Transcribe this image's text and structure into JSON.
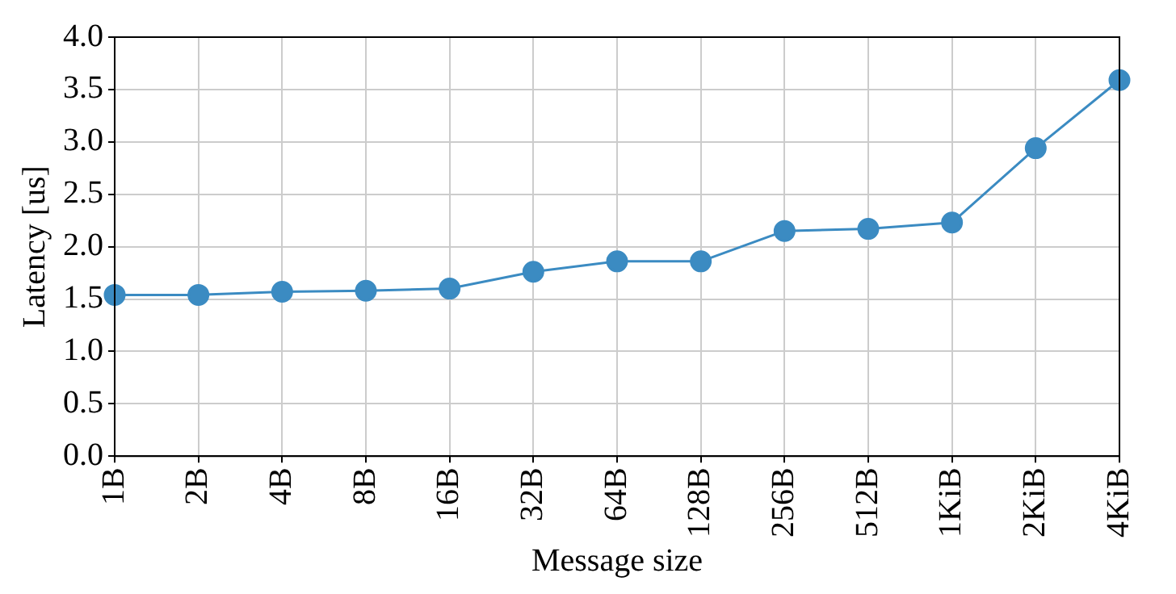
{
  "chart_data": {
    "type": "line",
    "xlabel": "Message size",
    "ylabel": "Latency [us]",
    "categories": [
      "1B",
      "2B",
      "4B",
      "8B",
      "16B",
      "32B",
      "64B",
      "128B",
      "256B",
      "512B",
      "1KiB",
      "2KiB",
      "4KiB"
    ],
    "series": [
      {
        "color": "#3b8bc2",
        "values": [
          1.54,
          1.54,
          1.57,
          1.58,
          1.6,
          1.76,
          1.86,
          1.86,
          2.15,
          2.17,
          2.23,
          2.94,
          3.59
        ]
      }
    ],
    "ylim": [
      0,
      4
    ],
    "yticks": [
      {
        "value": 0,
        "label": "0.0"
      },
      {
        "value": 0.5,
        "label": "0.5"
      },
      {
        "value": 1,
        "label": "1.0"
      },
      {
        "value": 1.5,
        "label": "1.5"
      },
      {
        "value": 2,
        "label": "2.0"
      },
      {
        "value": 2.5,
        "label": "2.5"
      },
      {
        "value": 3,
        "label": "3.0"
      },
      {
        "value": 3.5,
        "label": "3.5"
      },
      {
        "value": 4,
        "label": "4.0"
      }
    ],
    "grid": true,
    "marker": "circle",
    "line_style": "solid",
    "legend": false
  }
}
